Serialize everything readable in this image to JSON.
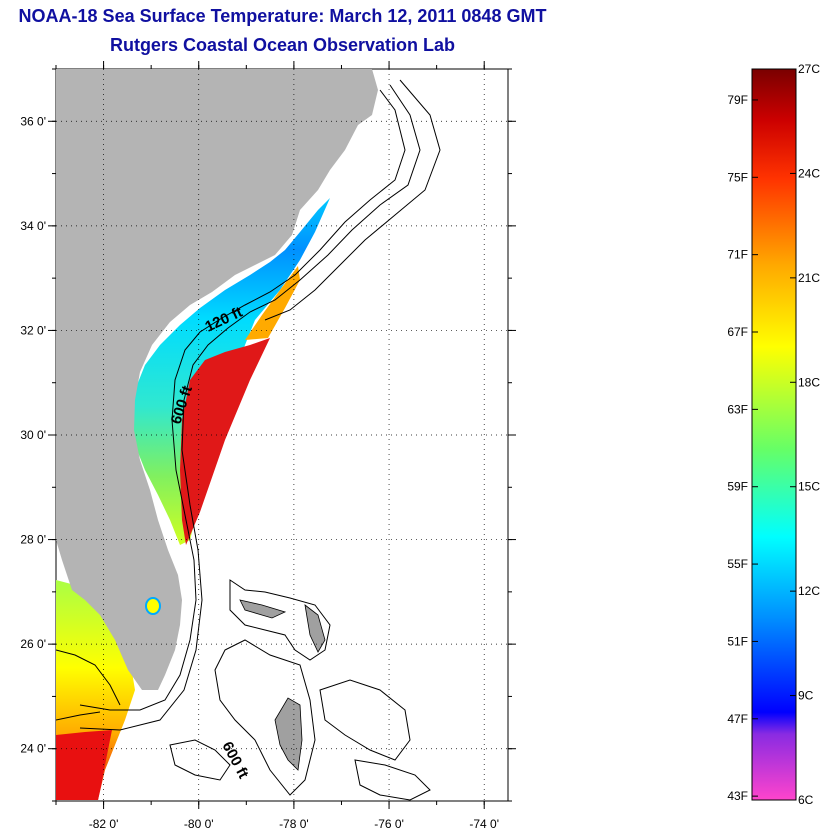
{
  "title": "NOAA-18 Sea Surface Temperature:  March 12, 2011 0848 GMT",
  "subtitle": "Rutgers Coastal Ocean Observation Lab",
  "map": {
    "lat_ticks": [
      {
        "value": 24,
        "label": "24 0'"
      },
      {
        "value": 26,
        "label": "26 0'"
      },
      {
        "value": 28,
        "label": "28 0'"
      },
      {
        "value": 30,
        "label": "30 0'"
      },
      {
        "value": 32,
        "label": "32 0'"
      },
      {
        "value": 34,
        "label": "34 0'"
      },
      {
        "value": 36,
        "label": "36 0'"
      }
    ],
    "lon_ticks": [
      {
        "value": -82,
        "label": "-82 0'"
      },
      {
        "value": -80,
        "label": "-80 0'"
      },
      {
        "value": -78,
        "label": "-78 0'"
      },
      {
        "value": -76,
        "label": "-76 0'"
      },
      {
        "value": -74,
        "label": "-74 0'"
      }
    ],
    "lon_range": [
      -83,
      -73.5
    ],
    "lat_range": [
      23,
      37
    ],
    "grid": "dotted",
    "isobath_labels": [
      "120 ft",
      "600 ft",
      "600 ft"
    ],
    "colors": {
      "land": "#b4b4b4",
      "ocean_no_data": "#ffffff",
      "contour": "#000000"
    }
  },
  "colorbar": {
    "range_c": [
      6,
      27
    ],
    "celsius_labels": [
      "27C",
      "24C",
      "21C",
      "18C",
      "15C",
      "12C",
      "9C",
      "6C"
    ],
    "fahrenheit_labels": [
      "79F",
      "75F",
      "71F",
      "67F",
      "63F",
      "59F",
      "55F",
      "51F",
      "47F",
      "43F"
    ],
    "stops": [
      "#ff44cc",
      "#8a2be2",
      "#0000ff",
      "#00b4ff",
      "#00ffff",
      "#66ff66",
      "#ffff00",
      "#ffaa00",
      "#ff3300",
      "#cc0000",
      "#7a0000"
    ]
  }
}
